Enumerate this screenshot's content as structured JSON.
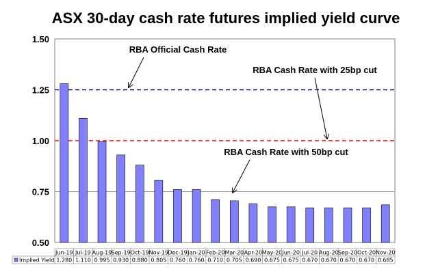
{
  "chart_data": {
    "type": "bar",
    "title": "ASX 30-day cash rate futures implied yield curve",
    "categories": [
      "Jun-19",
      "Jul-19",
      "Aug-19",
      "Sep-19",
      "Oct-19",
      "Nov-19",
      "Dec-19",
      "Jan-20",
      "Feb-20",
      "Mar-20",
      "Apr-20",
      "May-20",
      "Jun-20",
      "Jul-20",
      "Aug-20",
      "Sep-20",
      "Oct-20",
      "Nov-20"
    ],
    "series": [
      {
        "name": "Implied Yield",
        "values": [
          1.28,
          1.11,
          0.995,
          0.93,
          0.88,
          0.805,
          0.76,
          0.76,
          0.71,
          0.705,
          0.69,
          0.675,
          0.675,
          0.67,
          0.67,
          0.67,
          0.67,
          0.685
        ],
        "color": "#8080ff"
      }
    ],
    "value_labels": [
      "1.280",
      "1.110",
      "0.995",
      "0.930",
      "0.880",
      "0.805",
      "0.760",
      "0.760",
      "0.710",
      "0.705",
      "0.690",
      "0.675",
      "0.675",
      "0.670",
      "0.670",
      "0.670",
      "0.670",
      "0.685"
    ],
    "ylim": [
      0.5,
      1.5
    ],
    "yticks": [
      "0.50",
      "0.75",
      "1.00",
      "1.25",
      "1.50"
    ],
    "reference_lines": [
      {
        "value": 1.25,
        "color": "#000080",
        "style": "dashed"
      },
      {
        "value": 1.0,
        "color": "#ff0000",
        "style": "dashed"
      },
      {
        "value": 0.75,
        "color": "#a0a0a0",
        "style": "solid"
      }
    ],
    "annotations": [
      "RBA Official Cash Rate",
      "RBA Cash Rate with 25bp cut",
      "RBA Cash Rate with 50bp cut"
    ],
    "data_table": true
  }
}
